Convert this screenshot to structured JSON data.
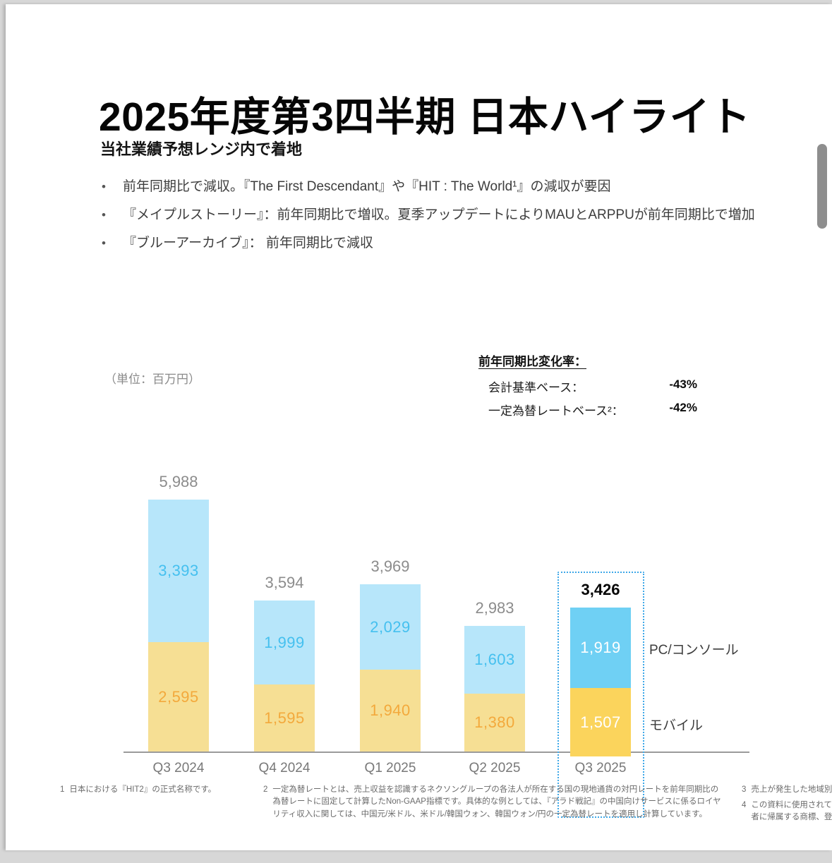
{
  "title": "2025年度第3四半期 日本ハイライト",
  "subtitle": "当社業績予想レンジ内で着地",
  "bullets": [
    "前年同期比で減収。『The First Descendant』や『HIT : The World¹』の減収が要因",
    "『メイプルストーリー』：前年同期比で増収。夏季アップデートによりMAUとARPPUが前年同期比で増加",
    "『ブルーアーカイブ』： 前年同期比で減収"
  ],
  "unit_note": "（単位：百万円）",
  "yoy": {
    "heading": "前年同期比変化率：",
    "rows": [
      {
        "label": "会計基準ベース：",
        "value": "-43%"
      },
      {
        "label": "一定為替レートベース²：",
        "value": "-42%"
      }
    ]
  },
  "chart_data": {
    "type": "bar",
    "stacked": true,
    "title": "",
    "unit": "百万円",
    "categories": [
      "Q3 2024",
      "Q4 2024",
      "Q1 2025",
      "Q2 2025",
      "Q3 2025"
    ],
    "series": [
      {
        "name": "モバイル",
        "values": [
          2595,
          1595,
          1940,
          1380,
          1507
        ]
      },
      {
        "name": "PC/コンソール",
        "values": [
          3393,
          1999,
          2029,
          1603,
          1919
        ]
      }
    ],
    "totals": [
      5988,
      3594,
      3969,
      2983,
      3426
    ],
    "highlighted_category": "Q3 2025",
    "legend": [
      "PC/コンソール",
      "モバイル"
    ],
    "legend_position": "right",
    "grid": false,
    "ylim": [
      0,
      6400
    ]
  },
  "colors": {
    "pc_light": "#b7e6fa",
    "pc_strong": "#6fd0f4",
    "mobile_light": "#f6df94",
    "mobile_strong": "#fbd45c",
    "pc_label": "#45c0ef",
    "mobile_label": "#f3a93c",
    "hl_label": "#ffffff",
    "highlight_border": "#3fa8e8"
  },
  "footnotes": [
    {
      "num": "1",
      "text": "日本における『HIT2』の正式名称です。"
    },
    {
      "num": "2",
      "text": "一定為替レートとは、売上収益を認識するネクソングループの各法人が所在する国の現地通貨の対円レートを前年同期比の為替レートに固定して計算したNon-GAAP指標です。具体的な例としては、『アラド戦記』の中国向けサービスに係るロイヤリティ収入に関しては、中国元/米ドル、米ドル/韓国ウォン、韓国ウォン/円の一定為替レートを適用し計算しています。"
    },
    {
      "num": "3",
      "text": "売上が発生した地域別"
    },
    {
      "num": "4",
      "lines": [
        "この資料に使用されている",
        "者に帰属する商標、登録商標"
      ]
    }
  ]
}
